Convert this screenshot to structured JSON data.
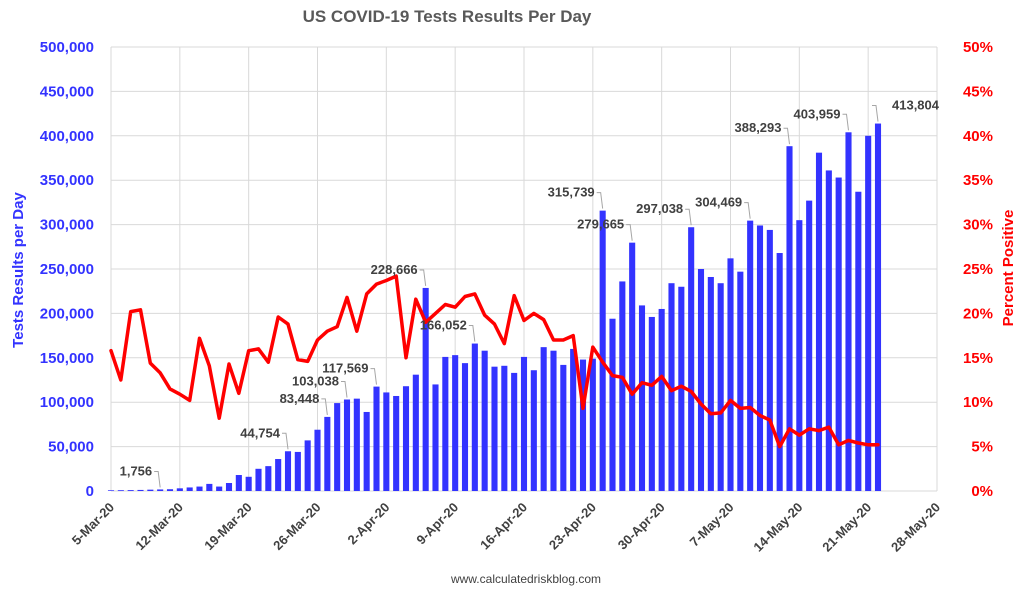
{
  "chart_data": {
    "type": "bar",
    "title": "US COVID-19 Tests Results Per Day",
    "ylabel": "Tests Results per Day",
    "y2label": "Percent Positive",
    "source": "www.calculatedriskblog.com",
    "ylim": [
      0,
      500000
    ],
    "y2lim": [
      0,
      50
    ],
    "grid": true,
    "start_date": "2020-03-05",
    "y_ticks": [
      "0",
      "50,000",
      "100,000",
      "150,000",
      "200,000",
      "250,000",
      "300,000",
      "350,000",
      "400,000",
      "450,000",
      "500,000"
    ],
    "y2_ticks": [
      "0%",
      "5%",
      "10%",
      "15%",
      "20%",
      "25%",
      "30%",
      "35%",
      "40%",
      "45%",
      "50%"
    ],
    "x_ticks": [
      {
        "label": "5-Mar-20",
        "day": 0
      },
      {
        "label": "12-Mar-20",
        "day": 7
      },
      {
        "label": "19-Mar-20",
        "day": 14
      },
      {
        "label": "26-Mar-20",
        "day": 21
      },
      {
        "label": "2-Apr-20",
        "day": 28
      },
      {
        "label": "9-Apr-20",
        "day": 35
      },
      {
        "label": "16-Apr-20",
        "day": 42
      },
      {
        "label": "23-Apr-20",
        "day": 49
      },
      {
        "label": "30-Apr-20",
        "day": 56
      },
      {
        "label": "7-May-20",
        "day": 63
      },
      {
        "label": "14-May-20",
        "day": 70
      },
      {
        "label": "21-May-20",
        "day": 77
      },
      {
        "label": "28-May-20",
        "day": 84
      }
    ],
    "x_day_range": [
      0,
      84
    ],
    "series": [
      {
        "name": "Tests Results per Day",
        "axis": "left",
        "type": "bar",
        "color": "#3333ff",
        "values": [
          800,
          900,
          1000,
          1200,
          1500,
          1756,
          2000,
          3000,
          4000,
          5000,
          8000,
          5000,
          9000,
          18000,
          16000,
          25000,
          28000,
          36000,
          44754,
          44000,
          57000,
          69000,
          83448,
          99000,
          103038,
          104000,
          89000,
          117569,
          111000,
          107000,
          118000,
          131000,
          228666,
          120000,
          151000,
          153000,
          144000,
          166052,
          158000,
          140000,
          141000,
          133000,
          151000,
          136000,
          162000,
          158000,
          142000,
          160000,
          148000,
          149000,
          315739,
          194000,
          236000,
          279665,
          209000,
          196000,
          205000,
          234000,
          230000,
          297038,
          250000,
          241000,
          234000,
          262000,
          247000,
          304469,
          299000,
          294000,
          268000,
          388293,
          305000,
          327000,
          381000,
          361000,
          353000,
          403959,
          337000,
          400000,
          413804
        ]
      },
      {
        "name": "Percent Positive",
        "axis": "right",
        "type": "line",
        "color": "#ff0000",
        "values": [
          15.8,
          12.5,
          20.2,
          20.4,
          14.4,
          13.3,
          11.5,
          10.9,
          10.2,
          17.2,
          14.1,
          8.2,
          14.3,
          11.0,
          15.8,
          16.0,
          14.5,
          19.6,
          18.8,
          14.8,
          14.6,
          17.0,
          18.0,
          18.5,
          21.8,
          18.0,
          22.2,
          23.3,
          23.7,
          24.2,
          15.0,
          21.6,
          19.0,
          20.0,
          21.0,
          20.7,
          21.9,
          22.2,
          19.8,
          18.8,
          16.6,
          22.0,
          19.2,
          20.0,
          19.3,
          17.0,
          17.0,
          17.5,
          9.3,
          16.2,
          14.5,
          13.0,
          12.8,
          10.9,
          12.2,
          11.9,
          12.9,
          11.3,
          11.8,
          11.2,
          9.8,
          8.7,
          8.8,
          10.2,
          9.3,
          9.4,
          8.5,
          8.0,
          5.0,
          7.0,
          6.3,
          7.0,
          6.8,
          7.2,
          5.2,
          5.7,
          5.4,
          5.2,
          5.2
        ]
      }
    ],
    "annotations": [
      {
        "text": "1,756",
        "day": 5,
        "value": 1756
      },
      {
        "text": "44,754",
        "day": 18,
        "value": 44754
      },
      {
        "text": "83,448",
        "day": 22,
        "value": 83448
      },
      {
        "text": "103,038",
        "day": 24,
        "value": 103038
      },
      {
        "text": "117,569",
        "day": 27,
        "value": 117569
      },
      {
        "text": "228,666",
        "day": 32,
        "value": 228666
      },
      {
        "text": "166,052",
        "day": 37,
        "value": 166052
      },
      {
        "text": "315,739",
        "day": 50,
        "value": 315739
      },
      {
        "text": "279,665",
        "day": 53,
        "value": 279665
      },
      {
        "text": "297,038",
        "day": 59,
        "value": 297038
      },
      {
        "text": "304,469",
        "day": 65,
        "value": 304469
      },
      {
        "text": "388,293",
        "day": 69,
        "value": 388293
      },
      {
        "text": "403,959",
        "day": 75,
        "value": 403959
      },
      {
        "text": "413,804",
        "day": 78,
        "value": 413804
      }
    ]
  }
}
